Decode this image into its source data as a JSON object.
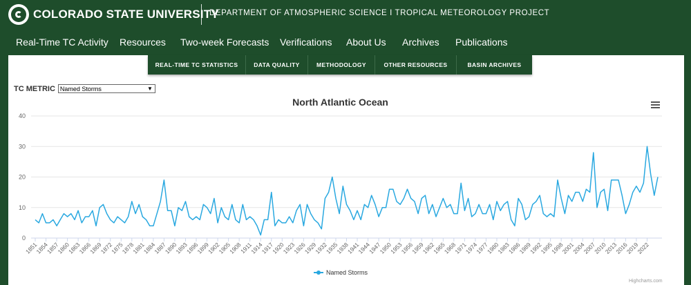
{
  "header": {
    "university": "COLORADO STATE UNIVERSITY",
    "department": "DEPARTMENT OF ATMOSPHERIC SCIENCE I TROPICAL METEOROLOGY PROJECT"
  },
  "nav": [
    "Real-Time TC Activity",
    "Resources",
    "Two-week Forecasts",
    "Verifications",
    "About Us",
    "Archives",
    "Publications"
  ],
  "subnav": [
    "REAL-TIME TC STATISTICS",
    "DATA QUALITY",
    "METHODOLOGY",
    "OTHER RESOURCES",
    "BASIN ARCHIVES"
  ],
  "metric": {
    "label": "TC METRIC",
    "selected": "Named Storms"
  },
  "credit": "Highcharts.com",
  "colors": {
    "header_green": "#1e4d2b",
    "series": "#29a8e0"
  },
  "icons": {
    "menu": "hamburger-menu-icon",
    "logo": "ram-logo-icon"
  },
  "chart_data": {
    "type": "line",
    "title": "North Atlantic Ocean",
    "ylim": [
      0,
      40
    ],
    "yticks": [
      0,
      10,
      20,
      30,
      40
    ],
    "grid": true,
    "legend_placement": "bottom-center",
    "x_start": 1851,
    "x_tick_labels": [
      "1851",
      "1854",
      "1857",
      "1860",
      "1863",
      "1866",
      "1869",
      "1872",
      "1875",
      "1878",
      "1881",
      "1884",
      "1887",
      "1890",
      "1893",
      "1896",
      "1899",
      "1902",
      "1905",
      "1908",
      "1911",
      "1914",
      "1917",
      "1920",
      "1923",
      "1926",
      "1929",
      "1932",
      "1935",
      "1938",
      "1941",
      "1944",
      "1947",
      "1950",
      "1953",
      "1956",
      "1959",
      "1962",
      "1965",
      "1968",
      "1971",
      "1974",
      "1977",
      "1980",
      "1983",
      "1986",
      "1989",
      "1992",
      "1995",
      "1998",
      "2001",
      "2004",
      "2007",
      "2010",
      "2013",
      "2016",
      "2019",
      "2022"
    ],
    "series": [
      {
        "name": "Named Storms",
        "values": [
          6,
          5,
          8,
          5,
          5,
          6,
          4,
          6,
          8,
          7,
          8,
          6,
          9,
          5,
          7,
          7,
          9,
          4,
          10,
          11,
          8,
          6,
          5,
          7,
          6,
          5,
          7,
          12,
          8,
          11,
          7,
          6,
          4,
          4,
          8,
          12,
          19,
          9,
          9,
          4,
          10,
          9,
          12,
          7,
          6,
          7,
          6,
          11,
          10,
          8,
          13,
          5,
          10,
          7,
          6,
          11,
          6,
          5,
          11,
          6,
          7,
          6,
          4,
          1,
          6,
          6,
          15,
          4,
          6,
          5,
          5,
          7,
          5,
          9,
          11,
          4,
          11,
          8,
          6,
          5,
          3,
          13,
          15,
          20,
          13,
          8,
          17,
          11,
          9,
          6,
          9,
          6,
          11,
          10,
          14,
          11,
          7,
          10,
          10,
          16,
          16,
          12,
          11,
          13,
          16,
          13,
          12,
          8,
          13,
          14,
          8,
          11,
          7,
          10,
          13,
          10,
          11,
          8,
          8,
          18,
          9,
          13,
          7,
          8,
          11,
          8,
          8,
          11,
          6,
          12,
          9,
          11,
          12,
          6,
          4,
          13,
          11,
          6,
          7,
          11,
          12,
          14,
          8,
          7,
          8,
          7,
          19,
          13,
          8,
          14,
          12,
          15,
          15,
          12,
          16,
          15,
          28,
          10,
          15,
          16,
          9,
          19,
          19,
          19,
          14,
          8,
          11,
          15,
          17,
          15,
          18,
          30,
          21,
          14,
          20
        ]
      }
    ]
  }
}
